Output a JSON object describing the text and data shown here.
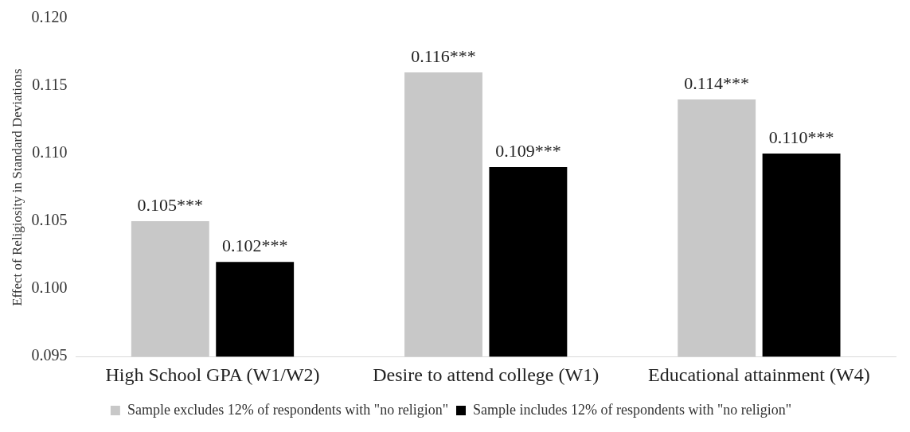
{
  "chart_data": {
    "type": "bar",
    "ylabel": "Effect of Religiosity in Standard Deviations",
    "categories": [
      "High School GPA (W1/W2)",
      "Desire to attend college (W1)",
      "Educational attainment (W4)"
    ],
    "series": [
      {
        "name": "Sample excludes 12% of respondents with \"no religion\"",
        "color": "#c8c8c8",
        "values": [
          0.105,
          0.116,
          0.114
        ],
        "value_labels": [
          "0.105***",
          "0.116***",
          "0.114***"
        ]
      },
      {
        "name": "Sample includes 12% of respondents with \"no religion\"",
        "color": "#000000",
        "values": [
          0.102,
          0.109,
          0.11
        ],
        "value_labels": [
          "0.102***",
          "0.109***",
          "0.110***"
        ]
      }
    ],
    "ylim": [
      0.095,
      0.12
    ],
    "yticks": [
      {
        "value": 0.095,
        "label": "0.095"
      },
      {
        "value": 0.1,
        "label": "0.100"
      },
      {
        "value": 0.105,
        "label": "0.105"
      },
      {
        "value": 0.11,
        "label": "0.110"
      },
      {
        "value": 0.115,
        "label": "0.115"
      },
      {
        "value": 0.12,
        "label": "0.120"
      }
    ],
    "grid": false,
    "legend": "bottom"
  }
}
